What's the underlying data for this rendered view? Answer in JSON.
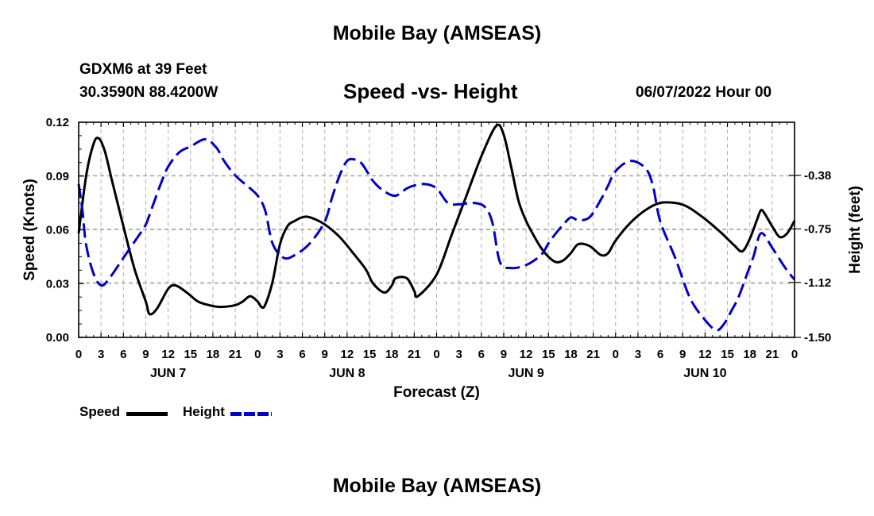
{
  "header": {
    "title": "Mobile Bay (AMSEAS)",
    "station": "GDXM6 at 39 Feet",
    "location": "30.3590N  88.4200W",
    "subtitle": "Speed -vs- Height",
    "datetime": "06/07/2022 Hour 00"
  },
  "footer": {
    "title": "Mobile Bay (AMSEAS)"
  },
  "legend": {
    "speed_label": "Speed",
    "height_label": "Height"
  },
  "chart_data": {
    "type": "line",
    "title": "Speed -vs- Height",
    "xlabel": "Forecast (Z)",
    "ylabel": "Speed (Knots)",
    "y2label": "Height (feet)",
    "xlim": [
      0,
      96
    ],
    "ylim": [
      0,
      0.12
    ],
    "y2lim": [
      -1.5,
      -0.0125
    ],
    "grid": true,
    "x_ticks": [
      0,
      3,
      6,
      9,
      12,
      15,
      18,
      21,
      24,
      27,
      30,
      33,
      36,
      39,
      42,
      45,
      48,
      51,
      54,
      57,
      60,
      63,
      66,
      69,
      72,
      75,
      78,
      81,
      84,
      87,
      90,
      93,
      96
    ],
    "x_tick_labels": [
      "0",
      "3",
      "6",
      "9",
      "12",
      "15",
      "18",
      "21",
      "0",
      "3",
      "6",
      "9",
      "12",
      "15",
      "18",
      "21",
      "0",
      "3",
      "6",
      "9",
      "12",
      "15",
      "18",
      "21",
      "0",
      "3",
      "6",
      "9",
      "12",
      "15",
      "18",
      "21",
      "0"
    ],
    "day_labels": [
      {
        "x": 12,
        "label": "JUN 7"
      },
      {
        "x": 36,
        "label": "JUN 8"
      },
      {
        "x": 60,
        "label": "JUN 9"
      },
      {
        "x": 84,
        "label": "JUN 10"
      }
    ],
    "y_ticks": [
      0,
      0.03,
      0.06,
      0.09,
      0.12
    ],
    "y_tick_labels": [
      "0.00",
      "0.03",
      "0.06",
      "0.09",
      "0.12"
    ],
    "y2_ticks": [
      -0.38,
      -0.75,
      -1.12,
      -1.5
    ],
    "y2_tick_labels": [
      "-0.38",
      "-0.75",
      "-1.12",
      "-1.50"
    ],
    "series": [
      {
        "name": "Speed",
        "axis": "left",
        "color": "#000000",
        "style": "solid",
        "x": [
          0,
          1,
          2,
          2.7,
          3.5,
          4.5,
          6,
          7.5,
          9,
          9.5,
          10.5,
          12,
          13,
          14.5,
          16,
          17.5,
          19,
          21,
          22,
          23,
          24,
          24.5,
          25,
          26,
          27,
          28,
          29,
          30,
          31,
          33,
          35,
          37,
          38.5,
          39.5,
          41,
          42,
          42.5,
          44,
          45,
          45.5,
          48,
          50,
          52,
          54,
          56,
          57,
          58,
          59,
          60,
          61,
          62,
          63,
          64,
          65,
          66,
          67,
          68.5,
          70,
          71,
          72,
          74,
          76,
          78,
          80,
          81,
          82,
          84,
          86,
          87,
          88,
          89,
          90,
          91,
          91.5,
          92,
          93,
          94,
          95,
          96
        ],
        "values": [
          0.058,
          0.09,
          0.108,
          0.111,
          0.104,
          0.087,
          0.062,
          0.038,
          0.02,
          0.013,
          0.016,
          0.027,
          0.029,
          0.025,
          0.02,
          0.018,
          0.017,
          0.018,
          0.02,
          0.023,
          0.02,
          0.017,
          0.018,
          0.031,
          0.052,
          0.062,
          0.065,
          0.067,
          0.067,
          0.063,
          0.056,
          0.046,
          0.038,
          0.03,
          0.025,
          0.029,
          0.033,
          0.033,
          0.026,
          0.023,
          0.035,
          0.057,
          0.079,
          0.101,
          0.118,
          0.113,
          0.095,
          0.076,
          0.065,
          0.057,
          0.05,
          0.045,
          0.042,
          0.043,
          0.047,
          0.052,
          0.051,
          0.046,
          0.047,
          0.054,
          0.064,
          0.071,
          0.075,
          0.075,
          0.074,
          0.072,
          0.066,
          0.059,
          0.055,
          0.051,
          0.048,
          0.055,
          0.066,
          0.071,
          0.069,
          0.062,
          0.056,
          0.058,
          0.065
        ]
      },
      {
        "name": "Height",
        "axis": "right",
        "color": "#0000cc",
        "style": "dashed",
        "x": [
          0,
          0.5,
          1,
          2,
          3,
          4,
          6,
          8,
          9,
          10,
          11,
          12,
          13.5,
          15,
          17,
          18.5,
          19.5,
          21,
          23,
          24,
          25,
          26,
          27.5,
          29,
          31,
          33,
          34,
          35,
          36,
          37,
          38,
          39.5,
          41,
          42.5,
          44,
          45,
          46.5,
          48,
          49.5,
          51,
          53,
          54.5,
          55.5,
          56.5,
          58,
          60,
          62,
          63,
          64,
          65,
          66,
          67,
          68.5,
          70,
          71,
          72,
          74,
          76,
          77,
          78,
          80,
          82,
          84,
          85.5,
          86.5,
          87.5,
          88.5,
          89.5,
          90.5,
          91.5,
          93,
          94.5,
          95.5,
          96
        ],
        "values": [
          -0.44,
          -0.62,
          -0.86,
          -1.06,
          -1.14,
          -1.1,
          -0.95,
          -0.8,
          -0.72,
          -0.58,
          -0.44,
          -0.32,
          -0.22,
          -0.18,
          -0.13,
          -0.19,
          -0.28,
          -0.38,
          -0.47,
          -0.52,
          -0.62,
          -0.85,
          -0.95,
          -0.93,
          -0.85,
          -0.7,
          -0.53,
          -0.38,
          -0.28,
          -0.27,
          -0.3,
          -0.42,
          -0.49,
          -0.52,
          -0.47,
          -0.45,
          -0.44,
          -0.47,
          -0.57,
          -0.58,
          -0.57,
          -0.6,
          -0.71,
          -0.98,
          -1.02,
          -1.0,
          -0.93,
          -0.85,
          -0.78,
          -0.72,
          -0.67,
          -0.69,
          -0.67,
          -0.55,
          -0.45,
          -0.35,
          -0.28,
          -0.33,
          -0.45,
          -0.7,
          -0.95,
          -1.23,
          -1.38,
          -1.45,
          -1.41,
          -1.32,
          -1.22,
          -1.08,
          -0.94,
          -0.78,
          -0.88,
          -1.0,
          -1.07,
          -1.1
        ]
      }
    ]
  }
}
